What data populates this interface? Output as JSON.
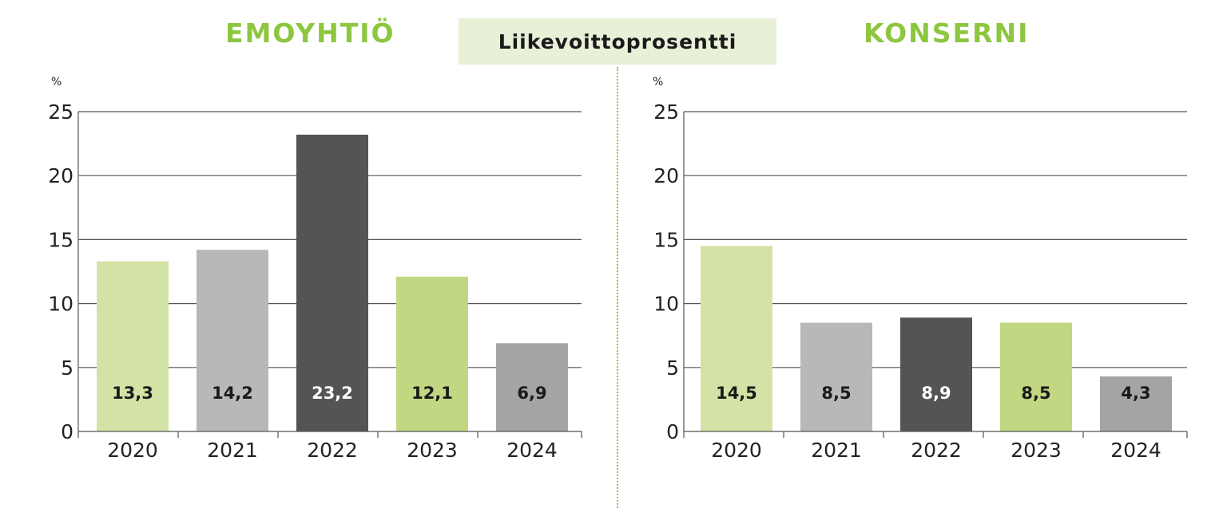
{
  "center_label": "Liikevoittoprosentti",
  "colors": {
    "title": "#8dc63f",
    "grid": "#555555",
    "bar_colors": [
      "#d2e3a5",
      "#b8b8b8",
      "#545452",
      "#c1d781",
      "#a4a4a4"
    ],
    "label_colors": [
      "#1a1a1a",
      "#1a1a1a",
      "#ffffff",
      "#1a1a1a",
      "#1a1a1a"
    ],
    "divider": "#8dc63f"
  },
  "chart_data": [
    {
      "type": "bar",
      "title": "EMOYHTIÖ",
      "ylabel": "%",
      "ylim": [
        0,
        25
      ],
      "yticks": [
        "0",
        "5",
        "10",
        "15",
        "20",
        "25"
      ],
      "grid": true,
      "categories": [
        "2020",
        "2021",
        "2022",
        "2023",
        "2024"
      ],
      "values": [
        13.3,
        14.2,
        23.2,
        12.1,
        6.9
      ],
      "data_labels": [
        "13,3",
        "14,2",
        "23,2",
        "12,1",
        "6,9"
      ]
    },
    {
      "type": "bar",
      "title": "KONSERNI",
      "ylabel": "%",
      "ylim": [
        0,
        25
      ],
      "yticks": [
        "0",
        "5",
        "10",
        "15",
        "20",
        "25"
      ],
      "grid": true,
      "categories": [
        "2020",
        "2021",
        "2022",
        "2023",
        "2024"
      ],
      "values": [
        14.5,
        8.5,
        8.9,
        8.5,
        4.3
      ],
      "data_labels": [
        "14,5",
        "8,5",
        "8,9",
        "8,5",
        "4,3"
      ]
    }
  ]
}
